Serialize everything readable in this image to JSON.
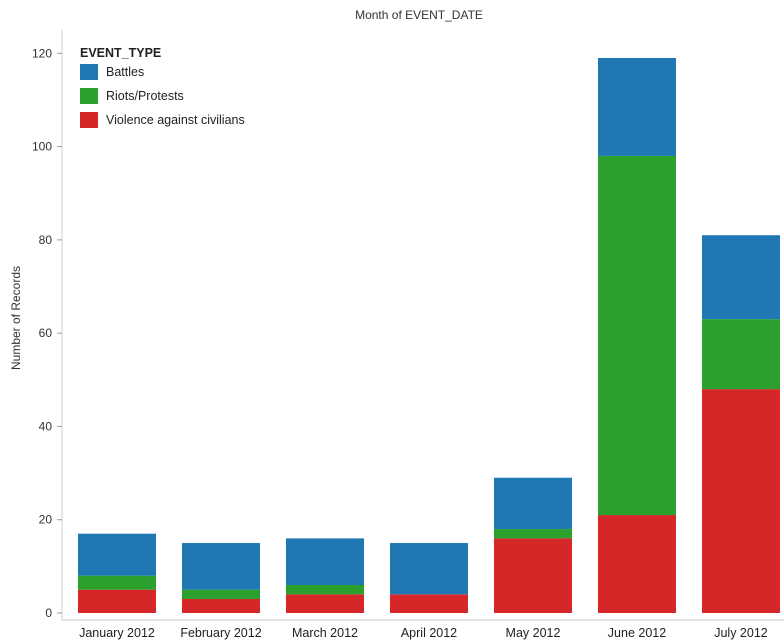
{
  "chart_data": {
    "type": "bar",
    "stacked": true,
    "title": "Month of EVENT_DATE",
    "ylabel": "Number of Records",
    "xlabel": "",
    "categories": [
      "January 2012",
      "February 2012",
      "March 2012",
      "April 2012",
      "May 2012",
      "June 2012",
      "July 2012"
    ],
    "yticks": [
      0,
      20,
      40,
      60,
      80,
      100,
      120
    ],
    "ylim": [
      0,
      125
    ],
    "grid": false,
    "legend": {
      "title": "EVENT_TYPE",
      "placement": "top-left"
    },
    "series": [
      {
        "name": "Violence against civilians",
        "color": "#d62728",
        "values": [
          5,
          3,
          4,
          4,
          16,
          21,
          48
        ]
      },
      {
        "name": "Riots/Protests",
        "color": "#2ca02c",
        "values": [
          3,
          2,
          2,
          0,
          2,
          77,
          15
        ]
      },
      {
        "name": "Battles",
        "color": "#1f77b4",
        "values": [
          9,
          10,
          10,
          11,
          11,
          21,
          18
        ]
      }
    ],
    "legend_order": [
      "Battles",
      "Riots/Protests",
      "Violence against civilians"
    ]
  }
}
